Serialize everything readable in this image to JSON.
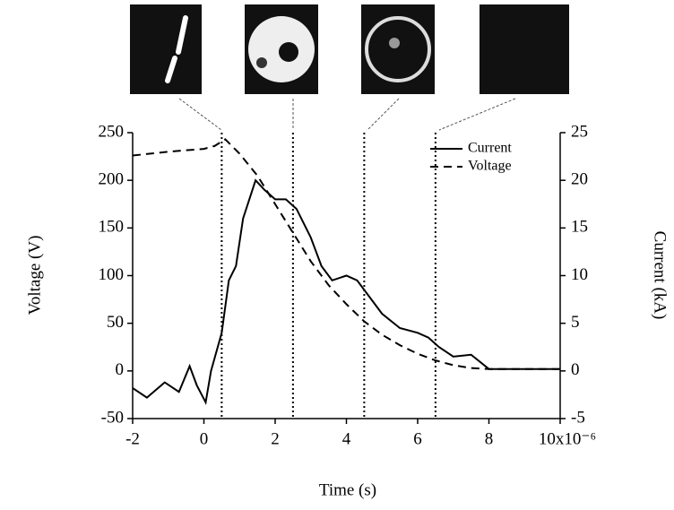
{
  "chart_data": {
    "type": "line",
    "xlabel": "Time (s)",
    "ylabel": "Voltage (V)",
    "y2label": "Current (kA)",
    "xlim": [
      -2,
      10
    ],
    "xticks": [
      -2,
      0,
      2,
      4,
      6,
      8,
      {
        "value": 10,
        "label": "10x10⁻⁶"
      }
    ],
    "ylim": [
      -50,
      250
    ],
    "yticks": [
      -50,
      0,
      50,
      100,
      150,
      200,
      250
    ],
    "y2lim": [
      -5,
      25
    ],
    "y2ticks": [
      -5,
      0,
      5,
      10,
      15,
      20,
      25
    ],
    "markers": [
      0.5,
      2.5,
      4.5,
      6.5
    ],
    "legend": "upper-right",
    "series": [
      {
        "name": "Current",
        "color": "#000000",
        "style": "solid",
        "axis": "y2",
        "x": [
          -2,
          -1.6,
          -1.1,
          -0.7,
          -0.4,
          -0.2,
          0.05,
          0.2,
          0.5,
          0.7,
          0.9,
          1.1,
          1.45,
          1.7,
          2,
          2.3,
          2.6,
          3,
          3.3,
          3.6,
          4,
          4.3,
          4.6,
          5,
          5.5,
          6,
          6.3,
          6.6,
          7,
          7.5,
          8,
          9,
          10
        ],
        "values": [
          -1.8,
          -2.8,
          -1.2,
          -2.2,
          0.5,
          -1.5,
          -3.3,
          0,
          4,
          9.5,
          11,
          16,
          20,
          19,
          18,
          18,
          17,
          14,
          11,
          9.5,
          10,
          9.5,
          8,
          6,
          4.5,
          4,
          3.5,
          2.5,
          1.5,
          1.7,
          0.2,
          0.2,
          0.2
        ]
      },
      {
        "name": "Voltage",
        "color": "#000000",
        "style": "dashed",
        "axis": "y",
        "x": [
          -2,
          -1,
          0,
          0.3,
          0.6,
          1,
          1.5,
          2,
          2.5,
          3,
          3.5,
          4,
          4.5,
          5,
          5.5,
          6,
          6.5,
          7,
          7.5,
          8,
          9,
          10
        ],
        "values": [
          226,
          230,
          233,
          236,
          243,
          228,
          205,
          175,
          145,
          115,
          90,
          70,
          52,
          38,
          27,
          18,
          11,
          6,
          3,
          2,
          2,
          2
        ]
      }
    ]
  }
}
